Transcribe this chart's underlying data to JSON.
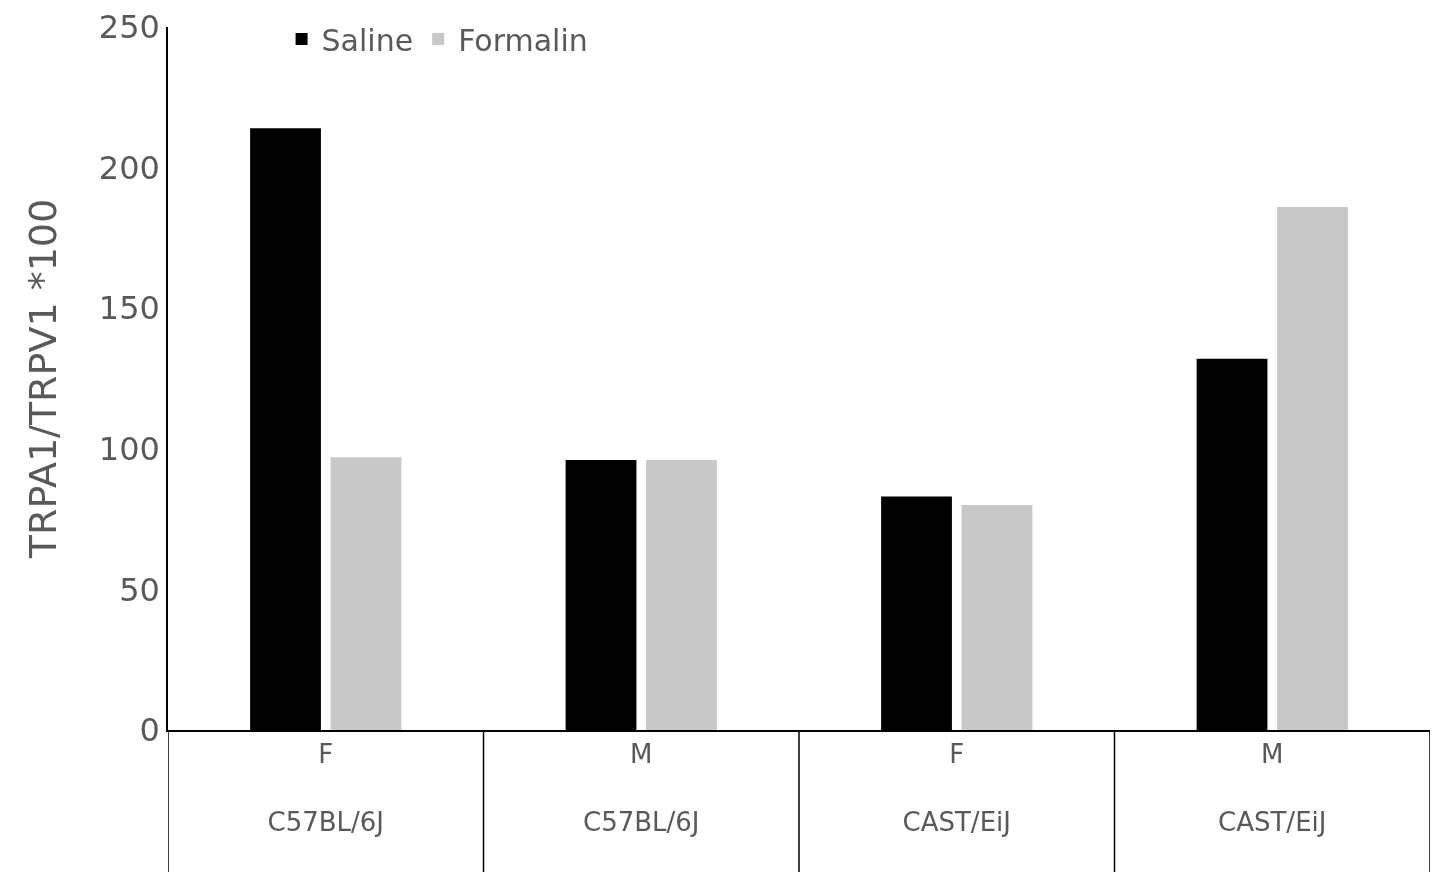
{
  "chart_data": {
    "type": "bar",
    "ylabel": "TRPA1/TRPV1 *100",
    "categories": [
      "F\nC57BL/6J",
      "M\nC57BL/6J",
      "F\nCAST/EiJ",
      "M\nCAST/EiJ"
    ],
    "series": [
      {
        "name": "Saline",
        "color": "#000000",
        "values": [
          214,
          96,
          83,
          132
        ]
      },
      {
        "name": "Formalin",
        "color": "#c8c8c8",
        "values": [
          97,
          96,
          80,
          186
        ]
      }
    ],
    "ylim": [
      0,
      250
    ],
    "yticks": [
      0,
      50,
      100,
      150,
      200,
      250
    ],
    "grid": false,
    "legend": "top left"
  }
}
